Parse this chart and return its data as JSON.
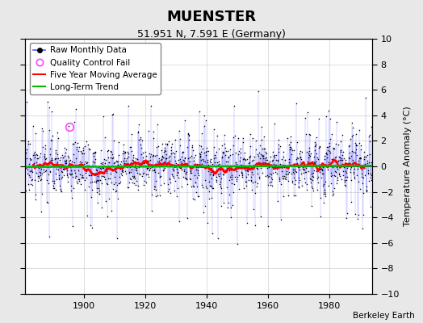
{
  "title": "MUENSTER",
  "subtitle": "51.951 N, 7.591 E (Germany)",
  "ylabel": "Temperature Anomaly (°C)",
  "attribution": "Berkeley Earth",
  "ylim": [
    -10,
    10
  ],
  "yticks": [
    -10,
    -8,
    -6,
    -4,
    -2,
    0,
    2,
    4,
    6,
    8,
    10
  ],
  "xlim": [
    1881,
    1994
  ],
  "xticks": [
    1900,
    1920,
    1940,
    1960,
    1980
  ],
  "start_year": 1881,
  "end_year": 1993,
  "seed": 17,
  "background_color": "#e8e8e8",
  "plot_bg_color": "#ffffff",
  "raw_line_color": "#5555ff",
  "raw_marker_color": "#000000",
  "moving_avg_color": "#ff0000",
  "trend_color": "#00bb00",
  "qc_fail_color": "#ff44ff",
  "grid_color": "#cccccc",
  "title_fontsize": 13,
  "subtitle_fontsize": 9,
  "legend_fontsize": 7.5,
  "tick_fontsize": 8,
  "qc_year": 1895.25,
  "qc_val": 3.1
}
